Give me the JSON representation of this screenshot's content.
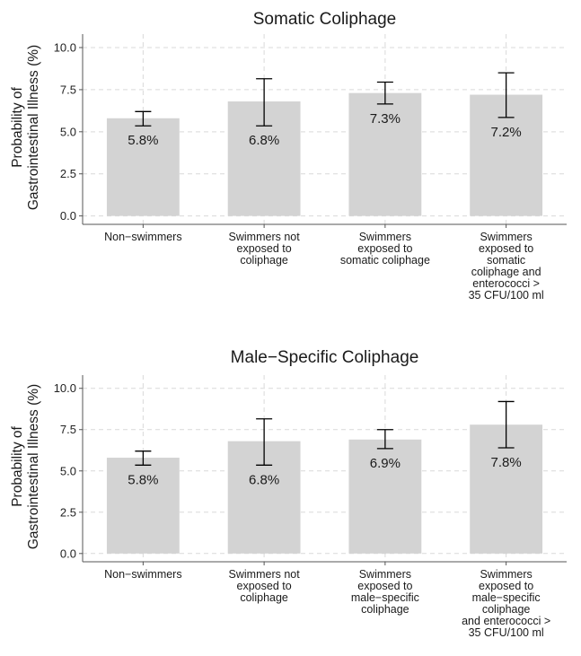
{
  "style": {
    "bar_color": "#d3d3d3",
    "grid_color": "#d9d9d9",
    "axis_color": "#555555",
    "errbar_color": "#000000"
  },
  "chart_data": [
    {
      "type": "bar",
      "title": "Somatic Coliphage",
      "ylabel": [
        "Probability of",
        "Gastrointestinal Illness (%)"
      ],
      "ylim": [
        -0.5,
        10.8
      ],
      "yticks": [
        "0.0",
        "2.5",
        "5.0",
        "7.5",
        "10.0"
      ],
      "categories": [
        [
          "Non−swimmers"
        ],
        [
          "Swimmers not",
          "exposed to",
          "coliphage"
        ],
        [
          "Swimmers",
          "exposed to",
          "somatic coliphage"
        ],
        [
          "Swimmers",
          "exposed to",
          "somatic",
          "coliphage and",
          "enterococci >",
          "35 CFU/100 ml"
        ]
      ],
      "values": [
        5.8,
        6.8,
        7.3,
        7.2
      ],
      "labels": [
        "5.8%",
        "6.8%",
        "7.3%",
        "7.2%"
      ],
      "ci_lower": [
        5.35,
        5.35,
        6.65,
        5.85
      ],
      "ci_upper": [
        6.2,
        8.15,
        7.95,
        8.5
      ],
      "grid": true
    },
    {
      "type": "bar",
      "title": "Male−Specific Coliphage",
      "ylabel": [
        "Probability of",
        "Gastrointestinal Illness (%)"
      ],
      "ylim": [
        -0.5,
        10.8
      ],
      "yticks": [
        "0.0",
        "2.5",
        "5.0",
        "7.5",
        "10.0"
      ],
      "categories": [
        [
          "Non−swimmers"
        ],
        [
          "Swimmers not",
          "exposed to",
          "coliphage"
        ],
        [
          "Swimmers",
          "exposed to",
          "male−specific",
          "coliphage"
        ],
        [
          "Swimmers",
          "exposed to",
          "male−specific",
          "coliphage",
          "and enterococci >",
          "35 CFU/100 ml"
        ]
      ],
      "values": [
        5.8,
        6.8,
        6.9,
        7.8
      ],
      "labels": [
        "5.8%",
        "6.8%",
        "6.9%",
        "7.8%"
      ],
      "ci_lower": [
        5.35,
        5.35,
        6.35,
        6.4
      ],
      "ci_upper": [
        6.2,
        8.15,
        7.5,
        9.2
      ],
      "grid": true
    }
  ]
}
